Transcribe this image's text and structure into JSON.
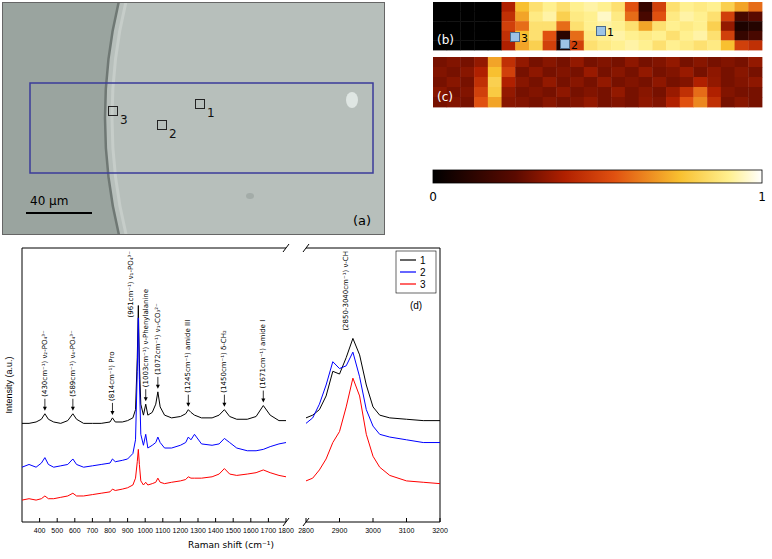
{
  "chart_data": [
    {
      "type": "line",
      "y_label": "Intensity (a.u.)",
      "x_label": "Raman shift (cm⁻¹)",
      "x": [
        300,
        340,
        380,
        410,
        430,
        450,
        480,
        520,
        560,
        589,
        610,
        650,
        700,
        750,
        800,
        814,
        830,
        870,
        900,
        930,
        945,
        955,
        961,
        967,
        975,
        990,
        1003,
        1015,
        1040,
        1060,
        1072,
        1085,
        1110,
        1150,
        1200,
        1230,
        1245,
        1260,
        1280,
        1320,
        1380,
        1420,
        1450,
        1480,
        1520,
        1580,
        1630,
        1671,
        1710,
        1760,
        1800
      ],
      "series": [
        {
          "name": "1",
          "color": "#000000",
          "values": [
            3.6,
            3.6,
            3.65,
            3.75,
            3.95,
            3.75,
            3.65,
            3.6,
            3.7,
            3.95,
            3.75,
            3.6,
            3.6,
            3.6,
            3.65,
            3.8,
            3.65,
            3.65,
            3.7,
            3.8,
            4.1,
            6.0,
            7.9,
            5.8,
            4.3,
            3.9,
            4.3,
            3.9,
            4.0,
            4.3,
            4.75,
            4.2,
            3.9,
            3.8,
            3.85,
            3.95,
            4.1,
            4.0,
            3.9,
            3.8,
            3.8,
            3.9,
            4.1,
            3.85,
            3.75,
            3.75,
            3.85,
            4.25,
            3.9,
            3.7,
            3.7
          ]
        },
        {
          "name": "2",
          "color": "#0000ff",
          "values": [
            2.0,
            2.1,
            2.0,
            2.15,
            2.35,
            2.1,
            2.0,
            2.05,
            2.1,
            2.3,
            2.1,
            2.0,
            2.05,
            2.1,
            2.15,
            2.3,
            2.2,
            2.25,
            2.3,
            2.5,
            3.0,
            5.5,
            7.45,
            5.2,
            3.2,
            2.8,
            3.2,
            2.7,
            2.8,
            2.9,
            3.1,
            2.9,
            2.7,
            2.7,
            2.8,
            2.9,
            3.1,
            3.0,
            3.2,
            2.85,
            2.8,
            2.85,
            3.05,
            2.9,
            2.7,
            2.6,
            2.6,
            2.65,
            2.75,
            2.85,
            2.9
          ]
        },
        {
          "name": "3",
          "color": "#ff0000",
          "values": [
            0.8,
            0.85,
            0.8,
            0.85,
            0.95,
            0.85,
            0.85,
            0.9,
            0.95,
            1.05,
            0.95,
            0.95,
            1.0,
            1.05,
            1.1,
            1.2,
            1.15,
            1.2,
            1.25,
            1.35,
            1.6,
            2.2,
            2.65,
            2.1,
            1.5,
            1.35,
            1.45,
            1.35,
            1.4,
            1.45,
            1.6,
            1.45,
            1.4,
            1.45,
            1.5,
            1.55,
            1.65,
            1.6,
            1.6,
            1.6,
            1.65,
            1.75,
            1.95,
            1.75,
            1.7,
            1.75,
            1.8,
            1.9,
            1.8,
            1.7,
            1.65
          ]
        }
      ],
      "xlim": [
        300,
        1800
      ],
      "xticks": [
        400,
        500,
        600,
        700,
        800,
        900,
        1000,
        1100,
        1200,
        1300,
        1400,
        1500,
        1600,
        1700,
        1800
      ],
      "ylim": [
        0,
        10
      ],
      "tick_labels": "x",
      "annotations": [
        {
          "text": "(430cm⁻¹) ν₂-PO₄³⁻",
          "x": 430
        },
        {
          "text": "(589cm⁻¹) ν₄-PO₄³⁻",
          "x": 589
        },
        {
          "text": "(814cm⁻¹) Pro",
          "x": 814
        },
        {
          "text": "(961cm⁻¹) ν₁-PO₄³⁻",
          "x": 961
        },
        {
          "text": "(1003cm⁻¹) ν-Phenylalanine",
          "x": 1003
        },
        {
          "text": "(1072cm⁻¹) ν₁-CO₃²⁻",
          "x": 1072
        },
        {
          "text": "(1245cm⁻¹) amide III",
          "x": 1245
        },
        {
          "text": "(1450cm⁻¹) δ-CH₂",
          "x": 1450
        },
        {
          "text": "(1671cm⁻¹) amide I",
          "x": 1671
        }
      ]
    },
    {
      "type": "line",
      "title": "(d)",
      "x": [
        2800,
        2820,
        2840,
        2860,
        2880,
        2900,
        2920,
        2940,
        2960,
        2980,
        3000,
        3020,
        3050,
        3100,
        3150,
        3200
      ],
      "series": [
        {
          "name": "1",
          "color": "#000000",
          "values": [
            3.8,
            3.9,
            4.1,
            4.6,
            5.5,
            5.4,
            6.0,
            6.7,
            6.1,
            5.0,
            4.2,
            3.9,
            3.8,
            3.75,
            3.7,
            3.7
          ]
        },
        {
          "name": "2",
          "color": "#0000ff",
          "values": [
            3.6,
            3.8,
            4.3,
            5.0,
            5.85,
            5.6,
            5.7,
            6.2,
            5.3,
            4.1,
            3.5,
            3.2,
            3.1,
            3.0,
            2.9,
            2.9
          ]
        },
        {
          "name": "3",
          "color": "#ff0000",
          "values": [
            1.5,
            1.6,
            1.9,
            2.3,
            2.9,
            3.3,
            4.2,
            5.25,
            4.6,
            3.2,
            2.4,
            2.0,
            1.7,
            1.5,
            1.45,
            1.4
          ]
        }
      ],
      "xlim": [
        2800,
        3200
      ],
      "xticks": [
        2800,
        2900,
        3000,
        3100,
        3200
      ],
      "ylim": [
        0,
        10
      ],
      "tick_labels": "x",
      "legend": "upper right",
      "annotations": [
        {
          "text": "(2850-3040cm⁻¹) ν-CH",
          "x": 2940
        }
      ]
    }
  ],
  "panels": {
    "a": {
      "label": "(a)",
      "scale_bar": "40 μm",
      "points": [
        "1",
        "2",
        "3"
      ]
    },
    "b": {
      "label": "(b)",
      "points": [
        "1",
        "2",
        "3"
      ],
      "cells": [
        [
          0,
          0,
          0,
          0,
          0,
          0.4,
          0.75,
          0.85,
          0.9,
          0.85,
          0.9,
          0.92,
          0.9,
          0.85,
          0.55,
          0.15,
          0.5,
          0.85,
          0.9,
          0.88,
          0.9,
          0.8,
          0.7,
          0.6
        ],
        [
          0,
          0,
          0,
          0,
          0,
          0.45,
          0.7,
          0.88,
          0.92,
          0.8,
          0.88,
          0.9,
          0.95,
          0.88,
          0.6,
          0.2,
          0.55,
          0.88,
          0.92,
          0.9,
          0.85,
          0.5,
          0.2,
          0.25
        ],
        [
          0,
          0,
          0,
          0,
          0,
          0.5,
          0.6,
          0.85,
          0.85,
          0.6,
          0.85,
          0.9,
          0.92,
          0.9,
          0.85,
          0.7,
          0.85,
          0.9,
          0.88,
          0.9,
          0.8,
          0.35,
          0.08,
          0.1
        ],
        [
          0,
          0,
          0,
          0,
          0,
          0.45,
          0.75,
          0.85,
          0.55,
          0.12,
          0.6,
          0.88,
          0.9,
          0.92,
          0.9,
          0.88,
          0.9,
          0.85,
          0.9,
          0.92,
          0.85,
          0.5,
          0.15,
          0.2
        ],
        [
          0,
          0,
          0,
          0,
          0,
          0.4,
          0.7,
          0.8,
          0.5,
          0.08,
          0.5,
          0.85,
          0.88,
          0.9,
          0.92,
          0.9,
          0.85,
          0.9,
          0.88,
          0.85,
          0.88,
          0.75,
          0.5,
          0.45
        ]
      ]
    },
    "c": {
      "label": "(c)",
      "cells": [
        [
          0.3,
          0.32,
          0.3,
          0.35,
          0.7,
          0.45,
          0.35,
          0.3,
          0.33,
          0.3,
          0.35,
          0.3,
          0.32,
          0.3,
          0.34,
          0.3,
          0.32,
          0.35,
          0.3,
          0.33,
          0.3,
          0.32,
          0.3,
          0.35
        ],
        [
          0.32,
          0.3,
          0.33,
          0.4,
          0.75,
          0.5,
          0.3,
          0.34,
          0.3,
          0.32,
          0.3,
          0.36,
          0.3,
          0.33,
          0.3,
          0.35,
          0.3,
          0.32,
          0.36,
          0.3,
          0.34,
          0.3,
          0.33,
          0.3
        ],
        [
          0.3,
          0.33,
          0.3,
          0.45,
          0.8,
          0.4,
          0.33,
          0.3,
          0.35,
          0.3,
          0.33,
          0.3,
          0.35,
          0.3,
          0.32,
          0.3,
          0.34,
          0.3,
          0.32,
          0.4,
          0.35,
          0.3,
          0.32,
          0.34
        ],
        [
          0.33,
          0.3,
          0.32,
          0.5,
          0.78,
          0.35,
          0.3,
          0.32,
          0.3,
          0.34,
          0.3,
          0.32,
          0.3,
          0.35,
          0.3,
          0.33,
          0.3,
          0.36,
          0.45,
          0.6,
          0.4,
          0.32,
          0.3,
          0.3
        ],
        [
          0.3,
          0.32,
          0.3,
          0.55,
          0.7,
          0.33,
          0.32,
          0.3,
          0.33,
          0.3,
          0.32,
          0.35,
          0.3,
          0.32,
          0.3,
          0.34,
          0.32,
          0.4,
          0.55,
          0.65,
          0.45,
          0.3,
          0.33,
          0.3
        ]
      ]
    },
    "colorbar": {
      "range": [
        0,
        1
      ],
      "ticks": [
        0,
        1
      ]
    }
  }
}
